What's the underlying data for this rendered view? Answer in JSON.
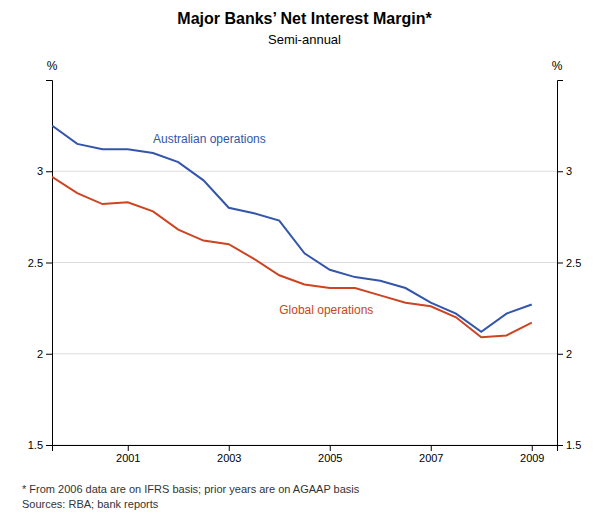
{
  "chart_data": {
    "type": "line",
    "title": "Major Banks’ Net Interest Margin*",
    "subtitle": "Semi-annual",
    "footnote": [
      "*   From 2006 data are on IFRS basis; prior years are on AGAAP basis",
      "Sources: RBA; bank reports"
    ],
    "ylabel": "%",
    "y2label": "%",
    "x": [
      1999.5,
      2000.0,
      2000.5,
      2001.0,
      2001.5,
      2002.0,
      2002.5,
      2003.0,
      2003.5,
      2004.0,
      2004.5,
      2005.0,
      2005.5,
      2006.0,
      2006.5,
      2007.0,
      2007.5,
      2008.0,
      2008.5,
      2009.0
    ],
    "series": [
      {
        "name": "Australian operations",
        "color": "#3355aa",
        "values": [
          3.25,
          3.15,
          3.12,
          3.12,
          3.1,
          3.05,
          2.95,
          2.8,
          2.77,
          2.73,
          2.55,
          2.46,
          2.42,
          2.4,
          2.36,
          2.28,
          2.22,
          2.12,
          2.22,
          2.27
        ]
      },
      {
        "name": "Global operations",
        "color": "#cc4422",
        "values": [
          2.97,
          2.88,
          2.82,
          2.83,
          2.78,
          2.68,
          2.62,
          2.6,
          2.52,
          2.43,
          2.38,
          2.36,
          2.36,
          2.32,
          2.28,
          2.26,
          2.2,
          2.09,
          2.1,
          2.17
        ]
      }
    ],
    "xlim": [
      1999.5,
      2009.5
    ],
    "xticks": [
      2001,
      2003,
      2005,
      2007,
      2009
    ],
    "ylim": [
      1.5,
      3.5
    ],
    "yticks": [
      1.5,
      2,
      2.5,
      3
    ],
    "y2lim": [
      1.5,
      3.5
    ],
    "y2ticks": [
      1.5,
      2,
      2.5,
      3
    ],
    "grid": true
  }
}
